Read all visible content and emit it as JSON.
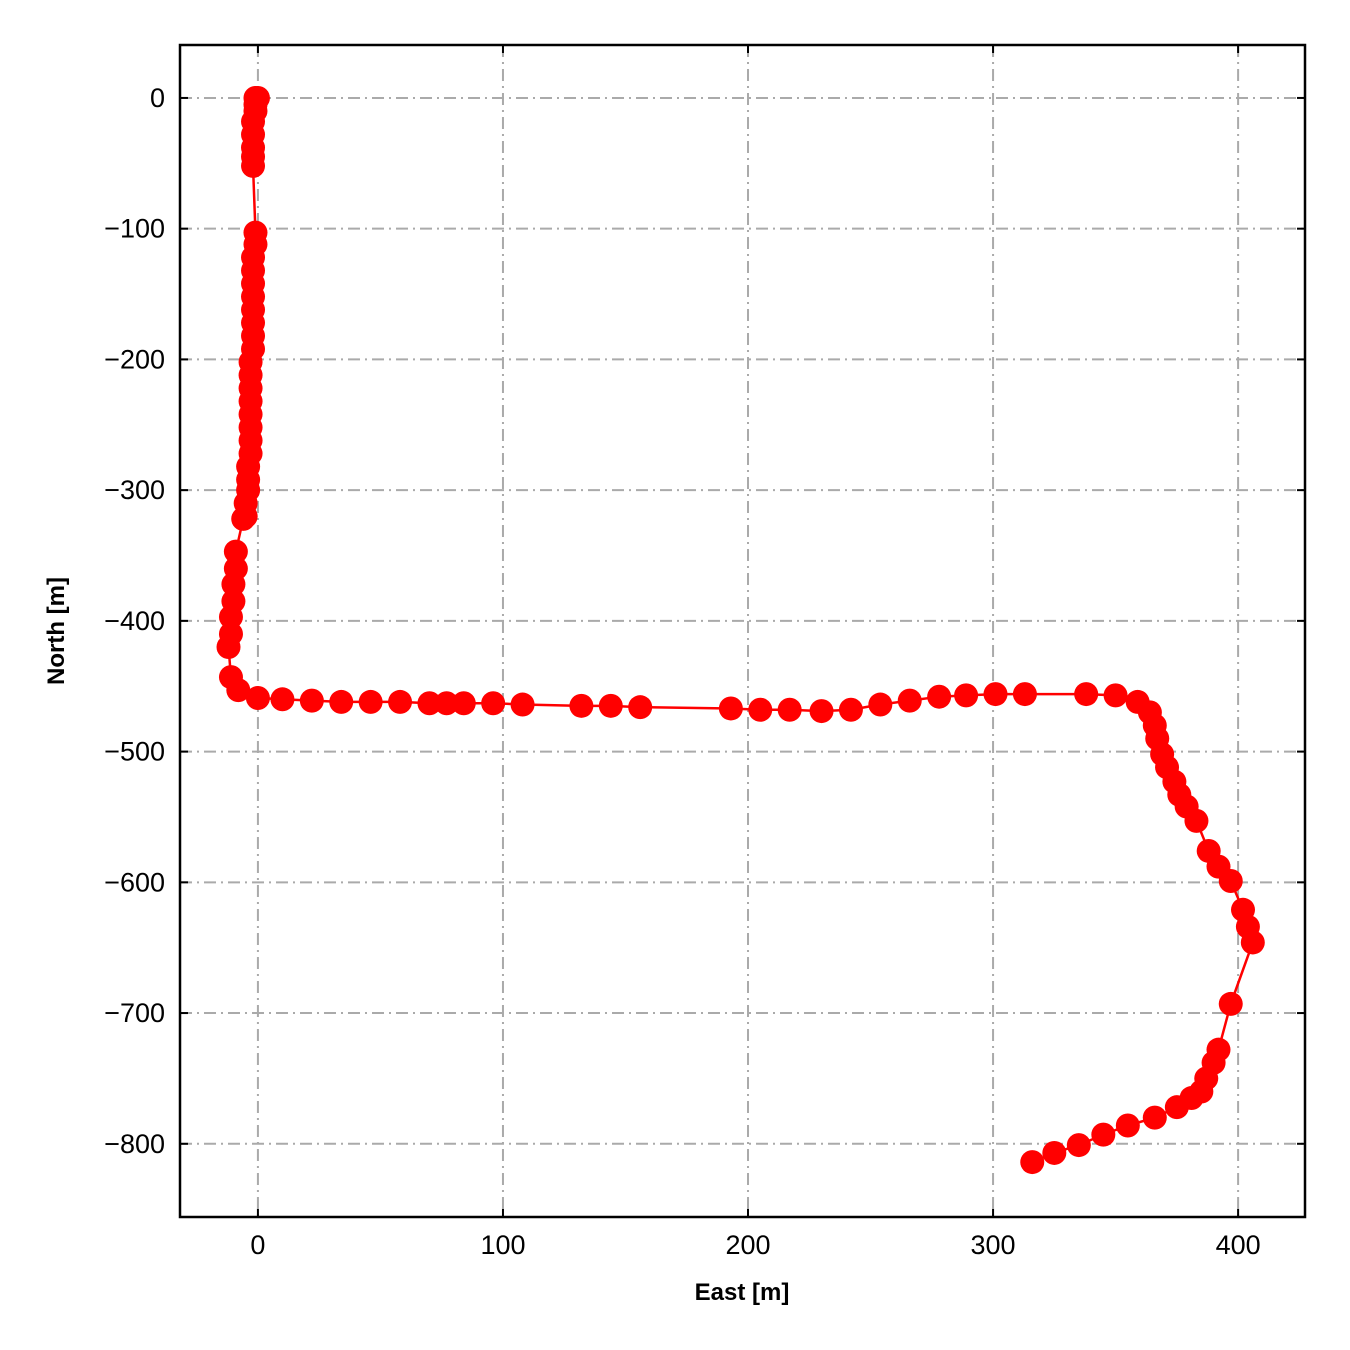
{
  "chart_data": {
    "type": "line",
    "x_label": "East [m]",
    "y_label": "North [m]",
    "xlim": [
      -31.8,
      427.3
    ],
    "ylim": [
      -856,
      40.5
    ],
    "xticks": [
      0,
      100,
      200,
      300,
      400
    ],
    "yticks": [
      {
        "value": -800,
        "label": "−800"
      },
      {
        "value": -700,
        "label": "−700"
      },
      {
        "value": -600,
        "label": "−600"
      },
      {
        "value": -500,
        "label": "−500"
      },
      {
        "value": -400,
        "label": "−400"
      },
      {
        "value": -300,
        "label": "−300"
      },
      {
        "value": -200,
        "label": "−200"
      },
      {
        "value": -100,
        "label": "−100"
      },
      0
    ],
    "grid": true,
    "series": [
      {
        "color": "#ff0000",
        "x": [
          0,
          -1,
          -1,
          -1,
          -2,
          -2,
          -2,
          -2,
          -2,
          -1,
          -1,
          -2,
          -2,
          -2,
          -2,
          -2,
          -2,
          -2,
          -2,
          -3,
          -3,
          -3,
          -3,
          -3,
          -3,
          -3,
          -3,
          -4,
          -4,
          -4,
          -5,
          -5,
          -6,
          -9,
          -9,
          -10,
          -10,
          -11,
          -11,
          -12,
          -11,
          -8,
          0,
          10,
          22,
          34,
          46,
          58,
          70,
          77,
          84,
          96,
          108,
          132,
          144,
          156,
          193,
          205,
          217,
          230,
          242,
          254,
          266,
          278,
          289,
          301,
          313,
          338,
          350,
          359,
          364,
          366,
          367,
          369,
          371,
          374,
          376,
          379,
          383,
          388,
          392,
          397,
          402,
          404,
          406,
          397,
          392,
          390,
          387,
          385,
          381,
          375,
          366,
          355,
          345,
          335,
          325,
          316
        ],
        "values": [
          0,
          0,
          -5,
          -10,
          -18,
          -28,
          -38,
          -45,
          -52,
          -103,
          -112,
          -122,
          -132,
          -142,
          -152,
          -162,
          -172,
          -182,
          -192,
          -202,
          -212,
          -222,
          -232,
          -242,
          -252,
          -262,
          -272,
          -282,
          -292,
          -300,
          -310,
          -320,
          -322,
          -347,
          -360,
          -372,
          -385,
          -397,
          -410,
          -420,
          -443,
          -453,
          -459,
          -460,
          -461,
          -462,
          -462,
          -462,
          -463,
          -463,
          -463,
          -463,
          -464,
          -465,
          -465,
          -466,
          -467,
          -468,
          -468,
          -469,
          -468,
          -464,
          -461,
          -458,
          -457,
          -456,
          -456,
          -456,
          -457,
          -462,
          -470,
          -480,
          -490,
          -502,
          -512,
          -523,
          -533,
          -542,
          -553,
          -576,
          -588,
          -599,
          -621,
          -634,
          -646,
          -693,
          -728,
          -738,
          -750,
          -760,
          -765,
          -772,
          -780,
          -786,
          -793,
          -801,
          -807,
          -814
        ]
      }
    ]
  }
}
